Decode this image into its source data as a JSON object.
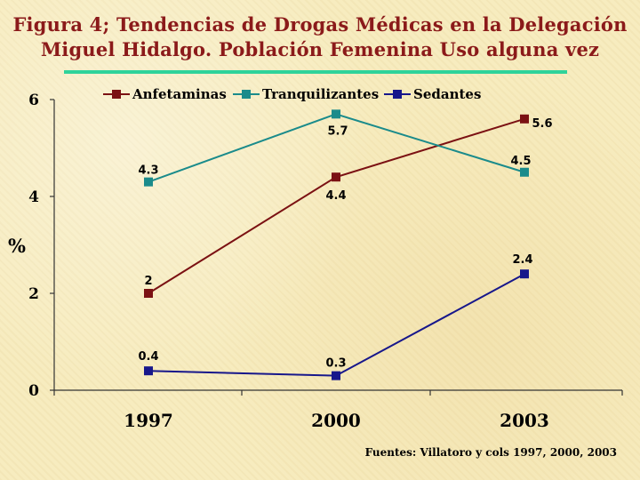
{
  "chart_data": {
    "type": "line",
    "title": [
      "Figura 4; Tendencias de Drogas Médicas en  la Delegación",
      "Miguel Hidalgo. Población Femenina Uso alguna vez"
    ],
    "xlabel": "",
    "ylabel": "%",
    "categories": [
      "1997",
      "2000",
      "2003"
    ],
    "ylim": [
      0,
      6
    ],
    "yticks": [
      "0",
      "2",
      "4",
      "6"
    ],
    "grid": false,
    "legend_position": "top",
    "series": [
      {
        "name": "Anfetaminas",
        "color": "#7b1113",
        "values": [
          2,
          4.4,
          5.6
        ],
        "labels": [
          "2",
          "4.4",
          "5.6"
        ]
      },
      {
        "name": "Tranquilizantes",
        "color": "#1a8b8b",
        "values": [
          4.3,
          5.7,
          4.5
        ],
        "labels": [
          "4.3",
          "5.7",
          "4.5"
        ]
      },
      {
        "name": "Sedantes",
        "color": "#17178b",
        "values": [
          0.4,
          0.3,
          2.4
        ],
        "labels": [
          "0.4",
          "0.3",
          "2.4"
        ]
      }
    ]
  },
  "source": "Fuentes: Villatoro y cols 1997, 2000, 2003",
  "colors": {
    "title": "#8b1a1a",
    "rule": "#2fd39a",
    "background": "#f7ecbf"
  }
}
